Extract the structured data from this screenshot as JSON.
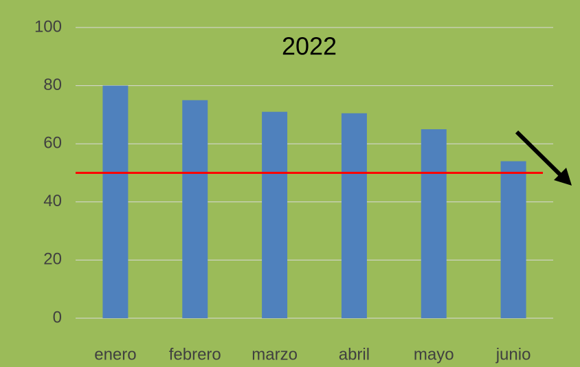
{
  "chart_data": {
    "type": "bar",
    "title": "2022",
    "categories": [
      "enero",
      "febrero",
      "marzo",
      "abril",
      "mayo",
      "junio"
    ],
    "values": [
      80,
      75,
      71,
      70.5,
      65,
      54
    ],
    "color": "#4f81bd",
    "ylim": [
      0,
      100
    ],
    "yticks": [
      0,
      20,
      40,
      60,
      80,
      100
    ],
    "grid": true,
    "reference_line": {
      "value": 50,
      "color": "#ff0000"
    }
  }
}
